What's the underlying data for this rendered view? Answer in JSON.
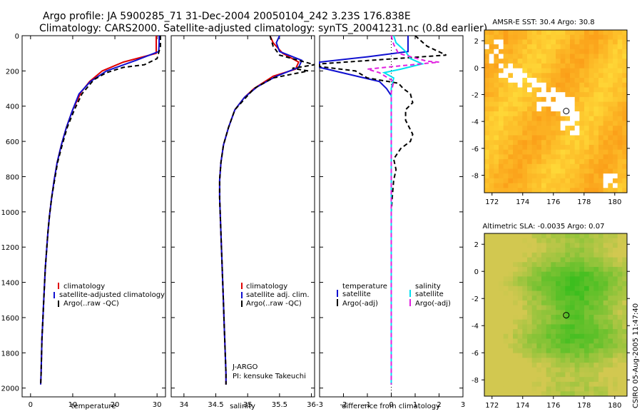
{
  "header": {
    "line1": "Argo profile: JA 5900285_71 31-Dec-2004 20050104_242 3.23S 176.838E",
    "line2": "Climatology: CARS2000. Satellite-adjusted climatology: synTS_20041231.nc (0.8d earlier)"
  },
  "side_stamp": "CSIRO 05-Aug-2005 11:47:40",
  "colors": {
    "red": "#e00000",
    "blue": "#1010d0",
    "black": "#000000",
    "cyan": "#00e0f0",
    "magenta": "#e020e0",
    "land": "#ffffff"
  },
  "chart_data": [
    {
      "id": "temperature",
      "type": "line",
      "xlabel": "temperature",
      "ylabel": "",
      "xlim": [
        -2,
        32
      ],
      "ylim": [
        2050,
        0
      ],
      "xticks": [
        0,
        10,
        20,
        30
      ],
      "yticks": [
        0,
        200,
        400,
        600,
        800,
        1000,
        1200,
        1400,
        1600,
        1800,
        2000
      ],
      "legend": [
        "climatology",
        "satellite-adjusted climatology",
        "Argo(..raw -QC)"
      ],
      "series": [
        {
          "name": "climatology",
          "color": "red",
          "dash": false,
          "points": [
            [
              29.8,
              0
            ],
            [
              29.8,
              100
            ],
            [
              22,
              150
            ],
            [
              17,
              200
            ],
            [
              14,
              260
            ],
            [
              12,
              320
            ],
            [
              10,
              420
            ],
            [
              8.5,
              520
            ],
            [
              7.3,
              620
            ],
            [
              6.3,
              720
            ],
            [
              5.6,
              820
            ],
            [
              5,
              920
            ],
            [
              4.5,
              1020
            ],
            [
              4.1,
              1120
            ],
            [
              3.8,
              1220
            ],
            [
              3.5,
              1320
            ],
            [
              3.3,
              1420
            ],
            [
              3.1,
              1520
            ],
            [
              2.9,
              1620
            ],
            [
              2.7,
              1720
            ],
            [
              2.6,
              1820
            ],
            [
              2.5,
              1920
            ],
            [
              2.4,
              1980
            ]
          ]
        },
        {
          "name": "satellite-adjusted climatology",
          "color": "blue",
          "dash": false,
          "points": [
            [
              30.5,
              0
            ],
            [
              30.5,
              40
            ],
            [
              30.4,
              90
            ],
            [
              25,
              140
            ],
            [
              18,
              200
            ],
            [
              14.2,
              260
            ],
            [
              11.5,
              330
            ],
            [
              10,
              420
            ],
            [
              8.5,
              520
            ],
            [
              7.3,
              620
            ],
            [
              6.3,
              720
            ],
            [
              5.6,
              820
            ],
            [
              5,
              920
            ],
            [
              4.5,
              1020
            ],
            [
              4.1,
              1120
            ],
            [
              3.8,
              1220
            ],
            [
              3.5,
              1320
            ],
            [
              3.3,
              1420
            ],
            [
              3.1,
              1520
            ],
            [
              2.9,
              1620
            ],
            [
              2.7,
              1720
            ],
            [
              2.6,
              1820
            ],
            [
              2.5,
              1920
            ],
            [
              2.4,
              1980
            ]
          ]
        },
        {
          "name": "Argo(..raw -QC)",
          "color": "black",
          "dash": true,
          "points": [
            [
              30.8,
              0
            ],
            [
              30.8,
              60
            ],
            [
              30,
              130
            ],
            [
              27,
              165
            ],
            [
              22,
              180
            ],
            [
              18,
              210
            ],
            [
              15,
              250
            ],
            [
              12.2,
              330
            ],
            [
              10.4,
              420
            ],
            [
              8.7,
              520
            ],
            [
              7.5,
              620
            ],
            [
              6.4,
              720
            ],
            [
              5.7,
              820
            ],
            [
              5,
              920
            ],
            [
              4.5,
              1020
            ],
            [
              4.1,
              1120
            ],
            [
              3.8,
              1220
            ],
            [
              3.5,
              1320
            ],
            [
              3.3,
              1420
            ],
            [
              3.1,
              1520
            ],
            [
              2.9,
              1620
            ],
            [
              2.7,
              1720
            ],
            [
              2.6,
              1820
            ],
            [
              2.5,
              1920
            ],
            [
              2.4,
              1980
            ]
          ]
        }
      ]
    },
    {
      "id": "salinity",
      "type": "line",
      "xlabel": "salinity",
      "ylabel": "",
      "xlim": [
        33.8,
        36.05
      ],
      "ylim": [
        2050,
        0
      ],
      "xticks": [
        34,
        34.5,
        35,
        35.5,
        36
      ],
      "yticks": [],
      "legend": [
        "climatology",
        "satellite adj. clim.",
        "Argo(..raw -QC)"
      ],
      "annotation": {
        "line1": "J-ARGO",
        "line2": "PI: kensuke Takeuchi"
      },
      "series": [
        {
          "name": "climatology",
          "color": "red",
          "dash": false,
          "points": [
            [
              35.35,
              0
            ],
            [
              35.4,
              40
            ],
            [
              35.55,
              100
            ],
            [
              35.8,
              150
            ],
            [
              35.75,
              190
            ],
            [
              35.4,
              230
            ],
            [
              35.1,
              300
            ],
            [
              34.95,
              350
            ],
            [
              34.8,
              420
            ],
            [
              34.7,
              520
            ],
            [
              34.62,
              620
            ],
            [
              34.58,
              720
            ],
            [
              34.56,
              820
            ],
            [
              34.56,
              920
            ],
            [
              34.57,
              1020
            ],
            [
              34.58,
              1120
            ],
            [
              34.59,
              1220
            ],
            [
              34.6,
              1320
            ],
            [
              34.61,
              1420
            ],
            [
              34.62,
              1520
            ],
            [
              34.63,
              1620
            ],
            [
              34.64,
              1720
            ],
            [
              34.65,
              1820
            ],
            [
              34.66,
              1920
            ],
            [
              34.66,
              1980
            ]
          ]
        },
        {
          "name": "satellite adj. clim.",
          "color": "blue",
          "dash": false,
          "points": [
            [
              35.5,
              0
            ],
            [
              35.45,
              40
            ],
            [
              35.5,
              90
            ],
            [
              35.85,
              140
            ],
            [
              35.8,
              180
            ],
            [
              35.45,
              230
            ],
            [
              35.15,
              290
            ],
            [
              34.95,
              350
            ],
            [
              34.8,
              420
            ],
            [
              34.7,
              520
            ],
            [
              34.62,
              620
            ],
            [
              34.58,
              720
            ],
            [
              34.56,
              820
            ],
            [
              34.56,
              920
            ],
            [
              34.57,
              1020
            ],
            [
              34.58,
              1120
            ],
            [
              34.59,
              1220
            ],
            [
              34.6,
              1320
            ],
            [
              34.61,
              1420
            ],
            [
              34.62,
              1520
            ],
            [
              34.63,
              1620
            ],
            [
              34.64,
              1720
            ],
            [
              34.65,
              1820
            ],
            [
              34.66,
              1920
            ],
            [
              34.66,
              1980
            ]
          ]
        },
        {
          "name": "Argo(..raw -QC)",
          "color": "black",
          "dash": true,
          "points": [
            [
              35.35,
              0
            ],
            [
              35.4,
              60
            ],
            [
              35.5,
              110
            ],
            [
              35.9,
              150
            ],
            [
              36.05,
              165
            ],
            [
              35.7,
              185
            ],
            [
              35.95,
              200
            ],
            [
              35.4,
              240
            ],
            [
              35.1,
              300
            ],
            [
              34.95,
              360
            ],
            [
              34.8,
              420
            ],
            [
              34.7,
              520
            ],
            [
              34.62,
              620
            ],
            [
              34.58,
              720
            ],
            [
              34.56,
              820
            ],
            [
              34.56,
              920
            ],
            [
              34.57,
              1020
            ],
            [
              34.58,
              1120
            ],
            [
              34.59,
              1220
            ],
            [
              34.6,
              1320
            ],
            [
              34.61,
              1420
            ],
            [
              34.62,
              1520
            ],
            [
              34.63,
              1620
            ],
            [
              34.64,
              1720
            ],
            [
              34.65,
              1820
            ],
            [
              34.66,
              1920
            ],
            [
              34.66,
              1980
            ]
          ]
        }
      ]
    },
    {
      "id": "difference",
      "type": "line",
      "xlabel": "difference from climatology",
      "ylabel": "",
      "xlim": [
        -3,
        3
      ],
      "ylim": [
        2050,
        0
      ],
      "xticks": [
        -3,
        -2,
        -1,
        0,
        1,
        2,
        3
      ],
      "yticks": [],
      "legend_left_title": "temperature",
      "legend_right_title": "salinity",
      "legend_left": [
        "satellite",
        "Argo(-adj)"
      ],
      "legend_right": [
        "satellite",
        "Argo(-adj)"
      ],
      "series": [
        {
          "name": "temperature satellite",
          "color": "blue",
          "dash": false,
          "points": [
            [
              0.7,
              0
            ],
            [
              0.7,
              40
            ],
            [
              0.7,
              90
            ],
            [
              -1,
              120
            ],
            [
              -3,
              150
            ],
            [
              -3,
              180
            ],
            [
              -0.5,
              260
            ],
            [
              -0.2,
              300
            ],
            [
              0,
              340
            ],
            [
              0,
              1980
            ]
          ]
        },
        {
          "name": "temperature Argo(-adj)",
          "color": "black",
          "dash": true,
          "points": [
            [
              1,
              0
            ],
            [
              1.5,
              60
            ],
            [
              2.3,
              110
            ],
            [
              -3,
              160
            ],
            [
              -3,
              175
            ],
            [
              -1.5,
              200
            ],
            [
              -1,
              240
            ],
            [
              0.3,
              270
            ],
            [
              0.5,
              300
            ],
            [
              0.8,
              330
            ],
            [
              0.9,
              380
            ],
            [
              0.6,
              420
            ],
            [
              0.6,
              480
            ],
            [
              0.9,
              560
            ],
            [
              0.8,
              600
            ],
            [
              0.4,
              640
            ],
            [
              0.1,
              700
            ],
            [
              0.2,
              760
            ],
            [
              0.1,
              820
            ],
            [
              0.05,
              900
            ],
            [
              0,
              1000
            ],
            [
              0,
              1980
            ]
          ]
        },
        {
          "name": "salinity satellite",
          "color": "cyan",
          "dash": false,
          "points": [
            [
              0.1,
              0
            ],
            [
              0.2,
              40
            ],
            [
              0.6,
              90
            ],
            [
              0.8,
              130
            ],
            [
              1.3,
              160
            ],
            [
              0.4,
              190
            ],
            [
              -0.3,
              210
            ],
            [
              0.1,
              240
            ],
            [
              0,
              300
            ],
            [
              0,
              1980
            ]
          ]
        },
        {
          "name": "salinity Argo(-adj)",
          "color": "magenta",
          "dash": true,
          "points": [
            [
              0,
              0
            ],
            [
              0.1,
              50
            ],
            [
              0.3,
              100
            ],
            [
              1.5,
              145
            ],
            [
              2,
              150
            ],
            [
              0.1,
              175
            ],
            [
              -1,
              190
            ],
            [
              -0.5,
              210
            ],
            [
              0.1,
              260
            ],
            [
              0,
              320
            ],
            [
              0,
              1980
            ]
          ]
        }
      ]
    },
    {
      "id": "sst_map",
      "type": "heatmap",
      "title": "AMSR-E SST: 30.4 Argo: 30.8",
      "xlim": [
        171.5,
        180.8
      ],
      "ylim": [
        -9.3,
        2.8
      ],
      "xticks": [
        172,
        174,
        176,
        178,
        180
      ],
      "yticks": [
        2,
        0,
        -2,
        -4,
        -6,
        -8
      ],
      "float_position": [
        176.838,
        -3.23
      ]
    },
    {
      "id": "sla_map",
      "type": "heatmap",
      "title": "Altimetric SLA: -0.0035 Argo: 0.07",
      "xlim": [
        171.5,
        180.8
      ],
      "ylim": [
        -9.2,
        2.8
      ],
      "xticks": [
        172,
        174,
        176,
        178,
        180
      ],
      "yticks": [
        2,
        0,
        -2,
        -4,
        -6,
        -8
      ],
      "float_position": [
        176.838,
        -3.23
      ]
    }
  ]
}
